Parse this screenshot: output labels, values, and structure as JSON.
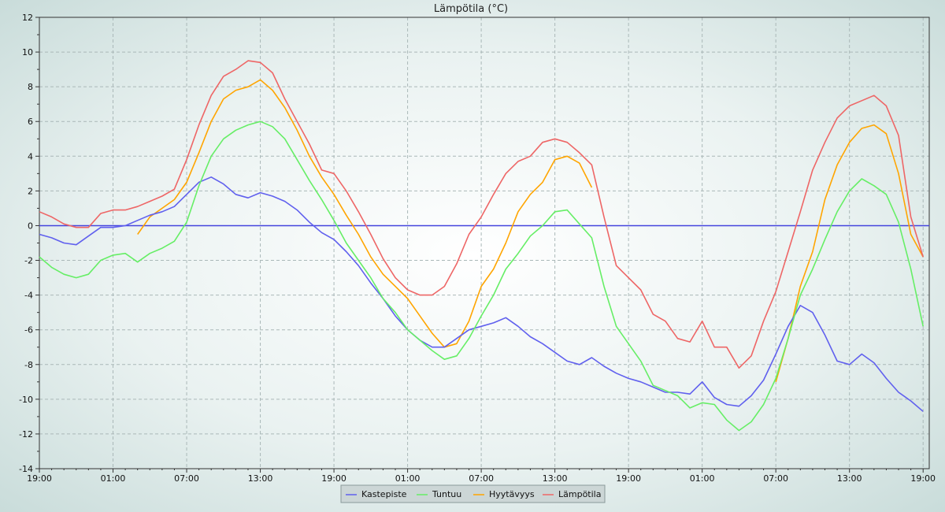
{
  "chart_data": {
    "type": "line",
    "title": "Lämpötila (°C)",
    "xlabel": "",
    "ylabel": "",
    "ylim": [
      -14,
      12
    ],
    "yticks": [
      -14,
      -12,
      -10,
      -8,
      -6,
      -4,
      -2,
      0,
      2,
      4,
      6,
      8,
      10,
      12
    ],
    "xlim_hours": [
      0,
      72.5
    ],
    "xticks": [
      {
        "label": "19:00",
        "h": 0
      },
      {
        "label": "01:00",
        "h": 6
      },
      {
        "label": "07:00",
        "h": 12
      },
      {
        "label": "13:00",
        "h": 18
      },
      {
        "label": "19:00",
        "h": 24
      },
      {
        "label": "01:00",
        "h": 30
      },
      {
        "label": "07:00",
        "h": 36
      },
      {
        "label": "13:00",
        "h": 42
      },
      {
        "label": "19:00",
        "h": 48
      },
      {
        "label": "01:00",
        "h": 54
      },
      {
        "label": "07:00",
        "h": 60
      },
      {
        "label": "13:00",
        "h": 66
      },
      {
        "label": "19:00",
        "h": 72
      }
    ],
    "zero_line_color": "#4444dd",
    "grid": true,
    "legend_position": "bottom",
    "series": [
      {
        "name": "Kastepiste",
        "color": "#6060ee",
        "points": [
          [
            0,
            -0.5
          ],
          [
            1,
            -0.7
          ],
          [
            2,
            -1.0
          ],
          [
            3,
            -1.1
          ],
          [
            4,
            -0.6
          ],
          [
            5,
            -0.1
          ],
          [
            6,
            -0.1
          ],
          [
            7,
            0
          ],
          [
            8,
            0.3
          ],
          [
            9,
            0.6
          ],
          [
            10,
            0.8
          ],
          [
            11,
            1.1
          ],
          [
            12,
            1.8
          ],
          [
            13,
            2.5
          ],
          [
            14,
            2.8
          ],
          [
            15,
            2.4
          ],
          [
            16,
            1.8
          ],
          [
            17,
            1.6
          ],
          [
            18,
            1.9
          ],
          [
            19,
            1.7
          ],
          [
            20,
            1.4
          ],
          [
            21,
            0.9
          ],
          [
            22,
            0.2
          ],
          [
            23,
            -0.4
          ],
          [
            24,
            -0.8
          ],
          [
            25,
            -1.5
          ],
          [
            26,
            -2.3
          ],
          [
            27,
            -3.3
          ],
          [
            28,
            -4.2
          ],
          [
            29,
            -5.2
          ],
          [
            30,
            -6.0
          ],
          [
            31,
            -6.6
          ],
          [
            32,
            -7.0
          ],
          [
            33,
            -7.0
          ],
          [
            34,
            -6.5
          ],
          [
            35,
            -6.0
          ],
          [
            36,
            -5.8
          ],
          [
            37,
            -5.6
          ],
          [
            38,
            -5.3
          ],
          [
            39,
            -5.8
          ],
          [
            40,
            -6.4
          ],
          [
            41,
            -6.8
          ],
          [
            42,
            -7.3
          ],
          [
            43,
            -7.8
          ],
          [
            44,
            -8.0
          ],
          [
            45,
            -7.6
          ],
          [
            46,
            -8.1
          ],
          [
            47,
            -8.5
          ],
          [
            48,
            -8.8
          ],
          [
            49,
            -9.0
          ],
          [
            50,
            -9.3
          ],
          [
            51,
            -9.6
          ],
          [
            52,
            -9.6
          ],
          [
            53,
            -9.7
          ],
          [
            54,
            -9.0
          ],
          [
            55,
            -9.9
          ],
          [
            56,
            -10.3
          ],
          [
            57,
            -10.4
          ],
          [
            58,
            -9.8
          ],
          [
            59,
            -8.9
          ],
          [
            60,
            -7.4
          ],
          [
            61,
            -5.8
          ],
          [
            62,
            -4.6
          ],
          [
            63,
            -5.0
          ],
          [
            64,
            -6.3
          ],
          [
            65,
            -7.8
          ],
          [
            66,
            -8.0
          ],
          [
            67,
            -7.4
          ],
          [
            68,
            -7.9
          ],
          [
            69,
            -8.8
          ],
          [
            70,
            -9.6
          ],
          [
            71,
            -10.1
          ],
          [
            72,
            -10.7
          ]
        ]
      },
      {
        "name": "Tuntuu",
        "color": "#66ee66",
        "points": [
          [
            0,
            -1.8
          ],
          [
            1,
            -2.4
          ],
          [
            2,
            -2.8
          ],
          [
            3,
            -3.0
          ],
          [
            4,
            -2.8
          ],
          [
            5,
            -2.0
          ],
          [
            6,
            -1.7
          ],
          [
            7,
            -1.6
          ],
          [
            8,
            -2.1
          ],
          [
            9,
            -1.6
          ],
          [
            10,
            -1.3
          ],
          [
            11,
            -0.9
          ],
          [
            12,
            0.2
          ],
          [
            13,
            2.3
          ],
          [
            14,
            4.0
          ],
          [
            15,
            5.0
          ],
          [
            16,
            5.5
          ],
          [
            17,
            5.8
          ],
          [
            18,
            6.0
          ],
          [
            19,
            5.7
          ],
          [
            20,
            5.0
          ],
          [
            21,
            3.8
          ],
          [
            22,
            2.6
          ],
          [
            23,
            1.5
          ],
          [
            24,
            0.3
          ],
          [
            25,
            -1.0
          ],
          [
            26,
            -2.0
          ],
          [
            27,
            -3.0
          ],
          [
            28,
            -4.2
          ],
          [
            29,
            -5.0
          ],
          [
            30,
            -6.0
          ],
          [
            31,
            -6.6
          ],
          [
            32,
            -7.2
          ],
          [
            33,
            -7.7
          ],
          [
            34,
            -7.5
          ],
          [
            35,
            -6.5
          ],
          [
            36,
            -5.2
          ],
          [
            37,
            -4.0
          ],
          [
            38,
            -2.5
          ],
          [
            39,
            -1.6
          ],
          [
            40,
            -0.6
          ],
          [
            41,
            0.0
          ],
          [
            42,
            0.8
          ],
          [
            43,
            0.9
          ],
          [
            44,
            0.1
          ],
          [
            45,
            -0.7
          ],
          [
            46,
            -3.5
          ],
          [
            47,
            -5.8
          ],
          [
            48,
            -6.8
          ],
          [
            49,
            -7.8
          ],
          [
            50,
            -9.2
          ],
          [
            51,
            -9.5
          ],
          [
            52,
            -9.8
          ],
          [
            53,
            -10.5
          ],
          [
            54,
            -10.2
          ],
          [
            55,
            -10.3
          ],
          [
            56,
            -11.2
          ],
          [
            57,
            -11.8
          ],
          [
            58,
            -11.3
          ],
          [
            59,
            -10.3
          ],
          [
            60,
            -8.8
          ],
          [
            61,
            -6.5
          ],
          [
            62,
            -4.0
          ],
          [
            63,
            -2.5
          ],
          [
            64,
            -0.8
          ],
          [
            65,
            0.8
          ],
          [
            66,
            2.0
          ],
          [
            67,
            2.7
          ],
          [
            68,
            2.3
          ],
          [
            69,
            1.8
          ],
          [
            70,
            0.2
          ],
          [
            71,
            -2.5
          ],
          [
            72,
            -5.8
          ]
        ]
      },
      {
        "name": "Hyytävyys",
        "color": "#ffa500",
        "points": [
          [
            8,
            -0.5
          ],
          [
            9,
            0.5
          ],
          [
            10,
            1.0
          ],
          [
            11,
            1.5
          ],
          [
            12,
            2.5
          ],
          [
            13,
            4.2
          ],
          [
            14,
            6.0
          ],
          [
            15,
            7.3
          ],
          [
            16,
            7.8
          ],
          [
            17,
            8.0
          ],
          [
            18,
            8.4
          ],
          [
            19,
            7.8
          ],
          [
            20,
            6.8
          ],
          [
            21,
            5.5
          ],
          [
            22,
            4.0
          ],
          [
            23,
            2.8
          ],
          [
            24,
            1.8
          ],
          [
            25,
            0.6
          ],
          [
            26,
            -0.5
          ],
          [
            27,
            -1.8
          ],
          [
            28,
            -2.8
          ],
          [
            29,
            -3.5
          ],
          [
            30,
            -4.2
          ],
          [
            31,
            -5.2
          ],
          [
            32,
            -6.2
          ],
          [
            33,
            -7.0
          ],
          [
            34,
            -6.8
          ],
          [
            35,
            -5.5
          ],
          [
            36,
            -3.5
          ],
          [
            37,
            -2.5
          ],
          [
            38,
            -1.0
          ],
          [
            39,
            0.8
          ],
          [
            40,
            1.8
          ],
          [
            41,
            2.5
          ],
          [
            42,
            3.8
          ],
          [
            43,
            4.0
          ],
          [
            44,
            3.6
          ],
          [
            45,
            2.2
          ],
          [
            60,
            -9.0
          ],
          [
            61,
            -6.5
          ],
          [
            62,
            -3.5
          ],
          [
            63,
            -1.5
          ],
          [
            64,
            1.5
          ],
          [
            65,
            3.5
          ],
          [
            66,
            4.8
          ],
          [
            67,
            5.6
          ],
          [
            68,
            5.8
          ],
          [
            69,
            5.3
          ],
          [
            70,
            3.0
          ],
          [
            71,
            -0.5
          ],
          [
            72,
            -1.8
          ]
        ]
      },
      {
        "name": "Lämpötila",
        "color": "#ee6666",
        "points": [
          [
            0,
            0.8
          ],
          [
            1,
            0.5
          ],
          [
            2,
            0.1
          ],
          [
            3,
            -0.1
          ],
          [
            4,
            -0.1
          ],
          [
            5,
            0.7
          ],
          [
            6,
            0.9
          ],
          [
            7,
            0.9
          ],
          [
            8,
            1.1
          ],
          [
            9,
            1.4
          ],
          [
            10,
            1.7
          ],
          [
            11,
            2.1
          ],
          [
            12,
            3.8
          ],
          [
            13,
            5.8
          ],
          [
            14,
            7.5
          ],
          [
            15,
            8.6
          ],
          [
            16,
            9.0
          ],
          [
            17,
            9.5
          ],
          [
            18,
            9.4
          ],
          [
            19,
            8.8
          ],
          [
            20,
            7.3
          ],
          [
            21,
            6.0
          ],
          [
            22,
            4.7
          ],
          [
            23,
            3.2
          ],
          [
            24,
            3.0
          ],
          [
            25,
            2.0
          ],
          [
            26,
            0.8
          ],
          [
            27,
            -0.5
          ],
          [
            28,
            -1.9
          ],
          [
            29,
            -3.0
          ],
          [
            30,
            -3.7
          ],
          [
            31,
            -4.0
          ],
          [
            32,
            -4.0
          ],
          [
            33,
            -3.5
          ],
          [
            34,
            -2.2
          ],
          [
            35,
            -0.5
          ],
          [
            36,
            0.5
          ],
          [
            37,
            1.8
          ],
          [
            38,
            3.0
          ],
          [
            39,
            3.7
          ],
          [
            40,
            4.0
          ],
          [
            41,
            4.8
          ],
          [
            42,
            5.0
          ],
          [
            43,
            4.8
          ],
          [
            44,
            4.2
          ],
          [
            45,
            3.5
          ],
          [
            46,
            0.5
          ],
          [
            47,
            -2.3
          ],
          [
            48,
            -3.0
          ],
          [
            49,
            -3.7
          ],
          [
            50,
            -5.1
          ],
          [
            51,
            -5.5
          ],
          [
            52,
            -6.5
          ],
          [
            53,
            -6.7
          ],
          [
            54,
            -5.5
          ],
          [
            55,
            -7.0
          ],
          [
            56,
            -7.0
          ],
          [
            57,
            -8.2
          ],
          [
            58,
            -7.5
          ],
          [
            59,
            -5.5
          ],
          [
            60,
            -3.8
          ],
          [
            61,
            -1.5
          ],
          [
            62,
            0.8
          ],
          [
            63,
            3.2
          ],
          [
            64,
            4.8
          ],
          [
            65,
            6.2
          ],
          [
            66,
            6.9
          ],
          [
            67,
            7.2
          ],
          [
            68,
            7.5
          ],
          [
            69,
            6.9
          ],
          [
            70,
            5.2
          ],
          [
            71,
            0.5
          ],
          [
            72,
            -1.8
          ]
        ]
      }
    ]
  }
}
